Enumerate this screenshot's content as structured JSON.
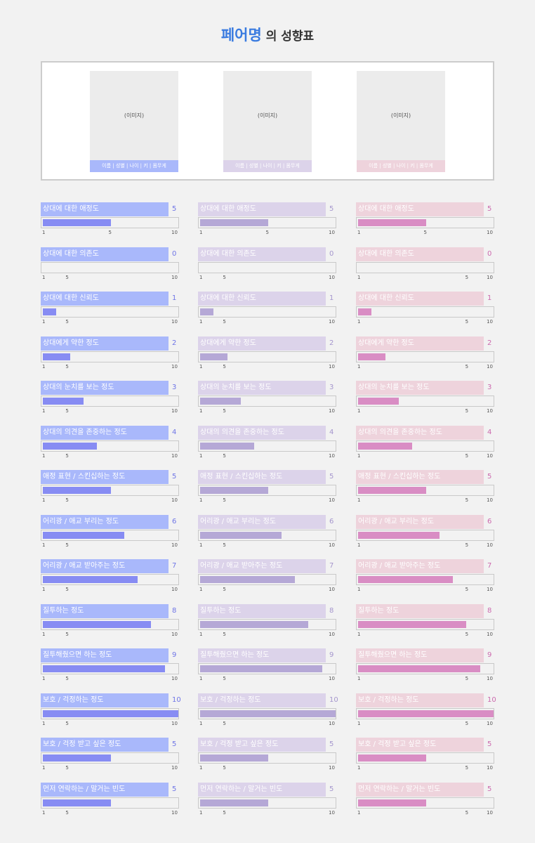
{
  "header": {
    "pair_name": "페어명",
    "title_suffix": "의 성향표"
  },
  "profiles": [
    {
      "image_placeholder": "(이미지)",
      "caption": "이름 | 성별 | 나이 | 키 | 몸무게"
    },
    {
      "image_placeholder": "(이미지)",
      "caption": "이름 | 성별 | 나이 | 키 | 몸무게"
    },
    {
      "image_placeholder": "(이미지)",
      "caption": "이름 | 성별 | 나이 | 키 | 몸무게"
    }
  ],
  "scale_ticks": [
    1,
    5,
    10
  ],
  "columns": [
    {
      "header_color": "#a9b8fb",
      "bar_color": "#878cf3",
      "value_color": "#6f75e6",
      "items": [
        {
          "label": "상대에 대한 애정도",
          "value": 5
        },
        {
          "label": "상대에 대한 의존도",
          "value": 0
        },
        {
          "label": "상대에 대한 신뢰도",
          "value": 1
        },
        {
          "label": "상대에게 약한 정도",
          "value": 2
        },
        {
          "label": "상대의 눈치를 보는 정도",
          "value": 3
        },
        {
          "label": "상대의 의견을 존중하는 정도",
          "value": 4
        },
        {
          "label": "애정 표현 / 스킨십하는 정도",
          "value": 5
        },
        {
          "label": "어리광 / 애교 부리는 정도",
          "value": 6
        },
        {
          "label": "어리광 / 애교 받아주는 정도",
          "value": 7
        },
        {
          "label": "질투하는 정도",
          "value": 8
        },
        {
          "label": "질투해줬으면 하는 정도",
          "value": 9
        },
        {
          "label": "보호 / 걱정하는 정도",
          "value": 10
        },
        {
          "label": "보호 / 걱정 받고 싶은 정도",
          "value": 5
        },
        {
          "label": "먼저 연락하는 / 말거는 빈도",
          "value": 5
        }
      ]
    },
    {
      "header_color": "#dcd3ea",
      "bar_color": "#b5a8d6",
      "value_color": "#a596cd",
      "items": [
        {
          "label": "상대에 대한 애정도",
          "value": 5
        },
        {
          "label": "상대에 대한 의존도",
          "value": 0
        },
        {
          "label": "상대에 대한 신뢰도",
          "value": 1
        },
        {
          "label": "상대에게 약한 정도",
          "value": 2
        },
        {
          "label": "상대의 눈치를 보는 정도",
          "value": 3
        },
        {
          "label": "상대의 의견을 존중하는 정도",
          "value": 4
        },
        {
          "label": "애정 표현 / 스킨십하는 정도",
          "value": 5
        },
        {
          "label": "어리광 / 애교 부리는 정도",
          "value": 6
        },
        {
          "label": "어리광 / 애교 받아주는 정도",
          "value": 7
        },
        {
          "label": "질투하는 정도",
          "value": 8
        },
        {
          "label": "질투해줬으면 하는 정도",
          "value": 9
        },
        {
          "label": "보호 / 걱정하는 정도",
          "value": 10
        },
        {
          "label": "보호 / 걱정 받고 싶은 정도",
          "value": 5
        },
        {
          "label": "먼저 연락하는 / 말거는 빈도",
          "value": 5
        }
      ]
    },
    {
      "header_color": "#eed3dc",
      "bar_color": "#d98dc4",
      "value_color": "#cc6aae",
      "items": [
        {
          "label": "상대에 대한 애정도",
          "value": 5
        },
        {
          "label": "상대에 대한 의존도",
          "value": 0
        },
        {
          "label": "상대에 대한 신뢰도",
          "value": 1
        },
        {
          "label": "상대에게 약한 정도",
          "value": 2
        },
        {
          "label": "상대의 눈치를 보는 정도",
          "value": 3
        },
        {
          "label": "상대의 의견을 존중하는 정도",
          "value": 4
        },
        {
          "label": "애정 표현 / 스킨십하는 정도",
          "value": 5
        },
        {
          "label": "어리광 / 애교 부리는 정도",
          "value": 6
        },
        {
          "label": "어리광 / 애교 받아주는 정도",
          "value": 7
        },
        {
          "label": "질투하는 정도",
          "value": 8
        },
        {
          "label": "질투해줬으면 하는 정도",
          "value": 9
        },
        {
          "label": "보호 / 걱정하는 정도",
          "value": 10
        },
        {
          "label": "보호 / 걱정 받고 싶은 정도",
          "value": 5
        },
        {
          "label": "먼저 연락하는 / 말거는 빈도",
          "value": 5
        }
      ]
    }
  ]
}
